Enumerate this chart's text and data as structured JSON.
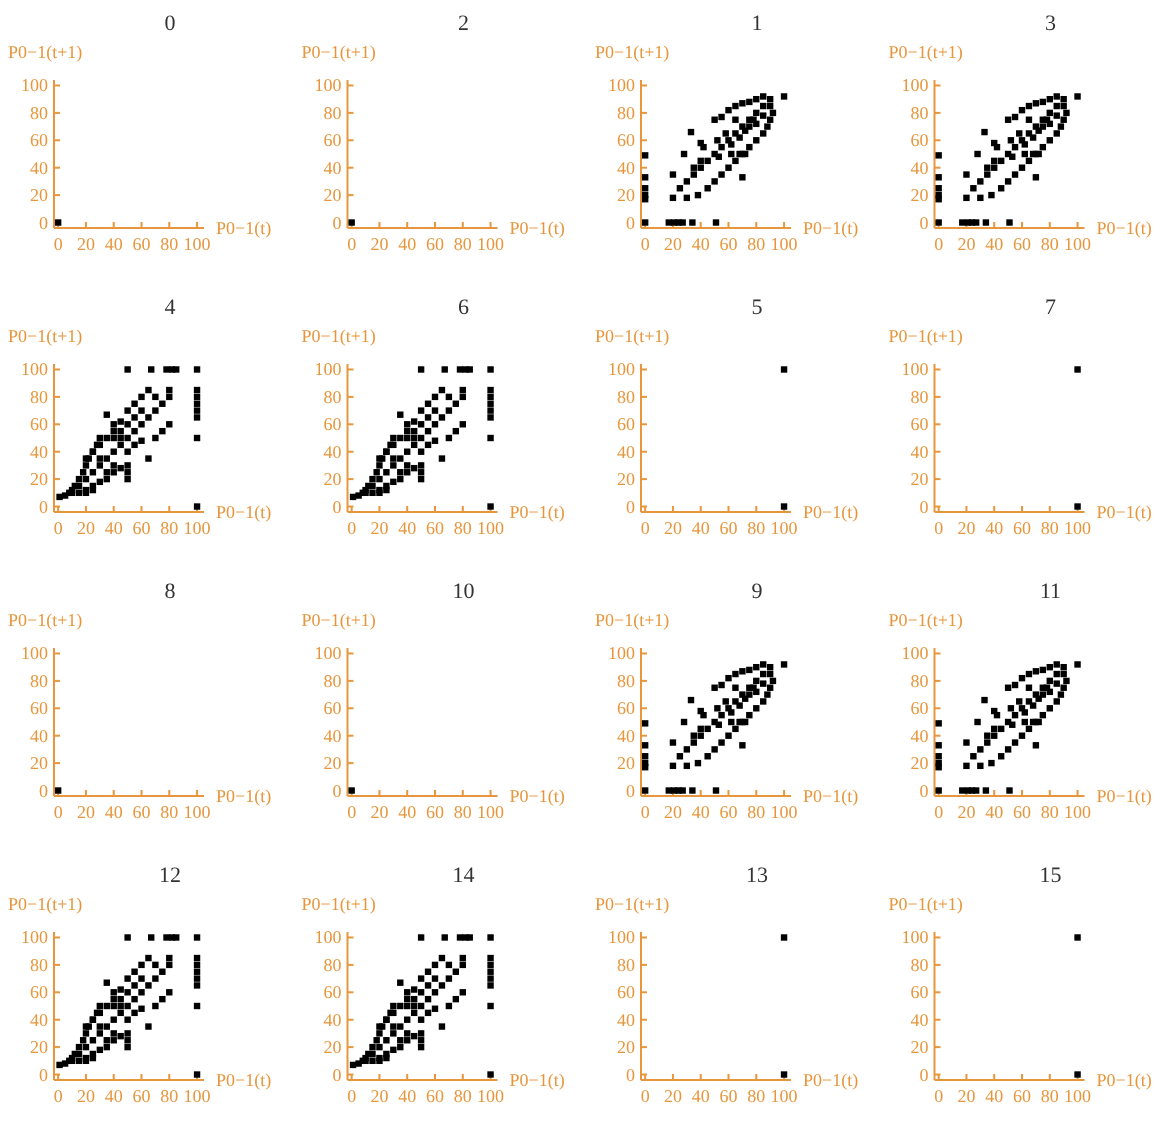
{
  "chart_data": [
    {
      "type": "scatter",
      "title": "0",
      "xlabel": "P0−1(t)",
      "ylabel": "P0−1(t+1)",
      "xlim": [
        -3,
        105
      ],
      "ylim": [
        -4,
        104
      ],
      "xticks": [
        0,
        20,
        40,
        60,
        80,
        100
      ],
      "yticks": [
        0,
        20,
        40,
        60,
        80,
        100
      ],
      "grid": false,
      "marker": "square",
      "series": [
        {
          "color": "#000000",
          "x": [
            0
          ],
          "values": [
            0
          ]
        }
      ]
    },
    {
      "type": "scatter",
      "title": "2",
      "xlabel": "P0−1(t)",
      "ylabel": "P0−1(t+1)",
      "xlim": [
        -3,
        105
      ],
      "ylim": [
        -4,
        104
      ],
      "xticks": [
        0,
        20,
        40,
        60,
        80,
        100
      ],
      "yticks": [
        0,
        20,
        40,
        60,
        80,
        100
      ],
      "grid": false,
      "marker": "square",
      "series": [
        {
          "color": "#000000",
          "x": [
            0
          ],
          "values": [
            0
          ]
        }
      ]
    },
    {
      "type": "scatter",
      "title": "1",
      "xlabel": "P0−1(t)",
      "ylabel": "P0−1(t+1)",
      "xlim": [
        -3,
        105
      ],
      "ylim": [
        -4,
        104
      ],
      "xticks": [
        0,
        20,
        40,
        60,
        80,
        100
      ],
      "yticks": [
        0,
        20,
        40,
        60,
        80,
        100
      ],
      "grid": false,
      "marker": "square",
      "series": [
        {
          "color": "#000000",
          "x": [
            0,
            0,
            0,
            0,
            0,
            0,
            17,
            21,
            24,
            27,
            34,
            51,
            20,
            25,
            30,
            35,
            40,
            45,
            50,
            55,
            60,
            65,
            70,
            75,
            80,
            85,
            90,
            100,
            20,
            28,
            33,
            40,
            42,
            50,
            55,
            60,
            65,
            70,
            75,
            80,
            85,
            30,
            38,
            45,
            50,
            55,
            60,
            65,
            70,
            75,
            80,
            85,
            88,
            90,
            92,
            35,
            40,
            53,
            62,
            68,
            70,
            72,
            52,
            58,
            65,
            75,
            80,
            85,
            90,
            62,
            68,
            72,
            78
          ],
          "values": [
            49,
            33,
            25,
            20,
            17,
            0,
            0,
            0,
            0,
            0,
            0,
            0,
            18,
            25,
            30,
            35,
            40,
            45,
            50,
            55,
            60,
            65,
            70,
            75,
            80,
            85,
            90,
            92,
            35,
            50,
            66,
            58,
            55,
            75,
            77,
            82,
            85,
            87,
            88,
            90,
            92,
            18,
            20,
            25,
            30,
            35,
            40,
            45,
            50,
            55,
            60,
            65,
            70,
            75,
            80,
            40,
            45,
            48,
            50,
            50,
            33,
            50,
            60,
            65,
            75,
            70,
            72,
            78,
            85,
            57,
            62,
            67,
            75
          ]
        }
      ]
    },
    {
      "type": "scatter",
      "title": "3",
      "xlabel": "P0−1(t)",
      "ylabel": "P0−1(t+1)",
      "xlim": [
        -3,
        105
      ],
      "ylim": [
        -4,
        104
      ],
      "xticks": [
        0,
        20,
        40,
        60,
        80,
        100
      ],
      "yticks": [
        0,
        20,
        40,
        60,
        80,
        100
      ],
      "grid": false,
      "marker": "square",
      "series": [
        {
          "color": "#000000",
          "x": [
            0,
            0,
            0,
            0,
            0,
            0,
            17,
            21,
            24,
            27,
            34,
            51,
            20,
            25,
            30,
            35,
            40,
            45,
            50,
            55,
            60,
            65,
            70,
            75,
            80,
            85,
            90,
            100,
            20,
            28,
            33,
            40,
            42,
            50,
            55,
            60,
            65,
            70,
            75,
            80,
            85,
            30,
            38,
            45,
            50,
            55,
            60,
            65,
            70,
            75,
            80,
            85,
            88,
            90,
            92,
            35,
            40,
            53,
            62,
            68,
            70,
            72,
            52,
            58,
            65,
            75,
            80,
            85,
            90,
            62,
            68,
            72,
            78
          ],
          "values": [
            49,
            33,
            25,
            20,
            17,
            0,
            0,
            0,
            0,
            0,
            0,
            0,
            18,
            25,
            30,
            35,
            40,
            45,
            50,
            55,
            60,
            65,
            70,
            75,
            80,
            85,
            90,
            92,
            35,
            50,
            66,
            58,
            55,
            75,
            77,
            82,
            85,
            87,
            88,
            90,
            92,
            18,
            20,
            25,
            30,
            35,
            40,
            45,
            50,
            55,
            60,
            65,
            70,
            75,
            80,
            40,
            45,
            48,
            50,
            50,
            33,
            50,
            60,
            65,
            75,
            70,
            72,
            78,
            85,
            57,
            62,
            67,
            75
          ]
        }
      ]
    },
    {
      "type": "scatter",
      "title": "4",
      "xlabel": "P0−1(t)",
      "ylabel": "P0−1(t+1)",
      "xlim": [
        -3,
        105
      ],
      "ylim": [
        -4,
        104
      ],
      "xticks": [
        0,
        20,
        40,
        60,
        80,
        100
      ],
      "yticks": [
        0,
        20,
        40,
        60,
        80,
        100
      ],
      "grid": false,
      "marker": "square",
      "series": [
        {
          "color": "#000000",
          "x": [
            1,
            50,
            67,
            78,
            82,
            85,
            100,
            100,
            100,
            100,
            100,
            100,
            100,
            100,
            5,
            8,
            10,
            12,
            15,
            18,
            20,
            22,
            25,
            28,
            30,
            10,
            15,
            20,
            25,
            30,
            35,
            40,
            45,
            50,
            55,
            60,
            65,
            70,
            75,
            80,
            15,
            20,
            25,
            30,
            35,
            40,
            45,
            50,
            20,
            25,
            20,
            25,
            30,
            35,
            40,
            45,
            50,
            55,
            60,
            65,
            35,
            40,
            45,
            50,
            55,
            60,
            65,
            70,
            75,
            80,
            50,
            55,
            60,
            70,
            80,
            40,
            45,
            35,
            40,
            30,
            50,
            50
          ],
          "values": [
            7,
            100,
            100,
            100,
            100,
            100,
            100,
            85,
            80,
            75,
            70,
            65,
            50,
            0,
            8,
            10,
            12,
            15,
            20,
            25,
            30,
            35,
            40,
            45,
            50,
            10,
            15,
            20,
            25,
            30,
            35,
            40,
            45,
            50,
            55,
            60,
            65,
            70,
            75,
            80,
            10,
            12,
            15,
            18,
            20,
            25,
            28,
            30,
            10,
            12,
            35,
            40,
            45,
            50,
            55,
            62,
            70,
            75,
            80,
            85,
            67,
            60,
            50,
            40,
            45,
            48,
            35,
            50,
            55,
            60,
            60,
            65,
            70,
            80,
            85,
            50,
            55,
            25,
            30,
            35,
            25,
            20
          ]
        }
      ]
    },
    {
      "type": "scatter",
      "title": "6",
      "xlabel": "P0−1(t)",
      "ylabel": "P0−1(t+1)",
      "xlim": [
        -3,
        105
      ],
      "ylim": [
        -4,
        104
      ],
      "xticks": [
        0,
        20,
        40,
        60,
        80,
        100
      ],
      "yticks": [
        0,
        20,
        40,
        60,
        80,
        100
      ],
      "grid": false,
      "marker": "square",
      "series": [
        {
          "color": "#000000",
          "x": [
            1,
            50,
            67,
            78,
            82,
            85,
            100,
            100,
            100,
            100,
            100,
            100,
            100,
            100,
            5,
            8,
            10,
            12,
            15,
            18,
            20,
            22,
            25,
            28,
            30,
            10,
            15,
            20,
            25,
            30,
            35,
            40,
            45,
            50,
            55,
            60,
            65,
            70,
            75,
            80,
            15,
            20,
            25,
            30,
            35,
            40,
            45,
            50,
            20,
            25,
            20,
            25,
            30,
            35,
            40,
            45,
            50,
            55,
            60,
            65,
            35,
            40,
            45,
            50,
            55,
            60,
            65,
            70,
            75,
            80,
            50,
            55,
            60,
            70,
            80,
            40,
            45,
            35,
            40,
            30,
            50,
            50
          ],
          "values": [
            7,
            100,
            100,
            100,
            100,
            100,
            100,
            85,
            80,
            75,
            70,
            65,
            50,
            0,
            8,
            10,
            12,
            15,
            20,
            25,
            30,
            35,
            40,
            45,
            50,
            10,
            15,
            20,
            25,
            30,
            35,
            40,
            45,
            50,
            55,
            60,
            65,
            70,
            75,
            80,
            10,
            12,
            15,
            18,
            20,
            25,
            28,
            30,
            10,
            12,
            35,
            40,
            45,
            50,
            55,
            62,
            70,
            75,
            80,
            85,
            67,
            60,
            50,
            40,
            45,
            48,
            35,
            50,
            55,
            60,
            60,
            65,
            70,
            80,
            85,
            50,
            55,
            25,
            30,
            35,
            25,
            20
          ]
        }
      ]
    },
    {
      "type": "scatter",
      "title": "5",
      "xlabel": "P0−1(t)",
      "ylabel": "P0−1(t+1)",
      "xlim": [
        -3,
        105
      ],
      "ylim": [
        -4,
        104
      ],
      "xticks": [
        0,
        20,
        40,
        60,
        80,
        100
      ],
      "yticks": [
        0,
        20,
        40,
        60,
        80,
        100
      ],
      "grid": false,
      "marker": "square",
      "series": [
        {
          "color": "#000000",
          "x": [
            100,
            100
          ],
          "values": [
            100,
            0
          ]
        }
      ]
    },
    {
      "type": "scatter",
      "title": "7",
      "xlabel": "P0−1(t)",
      "ylabel": "P0−1(t+1)",
      "xlim": [
        -3,
        105
      ],
      "ylim": [
        -4,
        104
      ],
      "xticks": [
        0,
        20,
        40,
        60,
        80,
        100
      ],
      "yticks": [
        0,
        20,
        40,
        60,
        80,
        100
      ],
      "grid": false,
      "marker": "square",
      "series": [
        {
          "color": "#000000",
          "x": [
            100,
            100
          ],
          "values": [
            100,
            0
          ]
        }
      ]
    },
    {
      "type": "scatter",
      "title": "8",
      "xlabel": "P0−1(t)",
      "ylabel": "P0−1(t+1)",
      "xlim": [
        -3,
        105
      ],
      "ylim": [
        -4,
        104
      ],
      "xticks": [
        0,
        20,
        40,
        60,
        80,
        100
      ],
      "yticks": [
        0,
        20,
        40,
        60,
        80,
        100
      ],
      "grid": false,
      "marker": "square",
      "series": [
        {
          "color": "#000000",
          "x": [
            0
          ],
          "values": [
            0
          ]
        }
      ]
    },
    {
      "type": "scatter",
      "title": "10",
      "xlabel": "P0−1(t)",
      "ylabel": "P0−1(t+1)",
      "xlim": [
        -3,
        105
      ],
      "ylim": [
        -4,
        104
      ],
      "xticks": [
        0,
        20,
        40,
        60,
        80,
        100
      ],
      "yticks": [
        0,
        20,
        40,
        60,
        80,
        100
      ],
      "grid": false,
      "marker": "square",
      "series": [
        {
          "color": "#000000",
          "x": [
            0
          ],
          "values": [
            0
          ]
        }
      ]
    },
    {
      "type": "scatter",
      "title": "9",
      "xlabel": "P0−1(t)",
      "ylabel": "P0−1(t+1)",
      "xlim": [
        -3,
        105
      ],
      "ylim": [
        -4,
        104
      ],
      "xticks": [
        0,
        20,
        40,
        60,
        80,
        100
      ],
      "yticks": [
        0,
        20,
        40,
        60,
        80,
        100
      ],
      "grid": false,
      "marker": "square",
      "series": [
        {
          "color": "#000000",
          "x": [
            0,
            0,
            0,
            0,
            0,
            0,
            17,
            21,
            24,
            27,
            34,
            51,
            20,
            25,
            30,
            35,
            40,
            45,
            50,
            55,
            60,
            65,
            70,
            75,
            80,
            85,
            90,
            100,
            20,
            28,
            33,
            40,
            42,
            50,
            55,
            60,
            65,
            70,
            75,
            80,
            85,
            30,
            38,
            45,
            50,
            55,
            60,
            65,
            70,
            75,
            80,
            85,
            88,
            90,
            92,
            35,
            40,
            53,
            62,
            68,
            70,
            72,
            52,
            58,
            65,
            75,
            80,
            85,
            90,
            62,
            68,
            72,
            78
          ],
          "values": [
            49,
            33,
            25,
            20,
            17,
            0,
            0,
            0,
            0,
            0,
            0,
            0,
            18,
            25,
            30,
            35,
            40,
            45,
            50,
            55,
            60,
            65,
            70,
            75,
            80,
            85,
            90,
            92,
            35,
            50,
            66,
            58,
            55,
            75,
            77,
            82,
            85,
            87,
            88,
            90,
            92,
            18,
            20,
            25,
            30,
            35,
            40,
            45,
            50,
            55,
            60,
            65,
            70,
            75,
            80,
            40,
            45,
            48,
            50,
            50,
            33,
            50,
            60,
            65,
            75,
            70,
            72,
            78,
            85,
            57,
            62,
            67,
            75
          ]
        }
      ]
    },
    {
      "type": "scatter",
      "title": "11",
      "xlabel": "P0−1(t)",
      "ylabel": "P0−1(t+1)",
      "xlim": [
        -3,
        105
      ],
      "ylim": [
        -4,
        104
      ],
      "xticks": [
        0,
        20,
        40,
        60,
        80,
        100
      ],
      "yticks": [
        0,
        20,
        40,
        60,
        80,
        100
      ],
      "grid": false,
      "marker": "square",
      "series": [
        {
          "color": "#000000",
          "x": [
            0,
            0,
            0,
            0,
            0,
            0,
            17,
            21,
            24,
            27,
            34,
            51,
            20,
            25,
            30,
            35,
            40,
            45,
            50,
            55,
            60,
            65,
            70,
            75,
            80,
            85,
            90,
            100,
            20,
            28,
            33,
            40,
            42,
            50,
            55,
            60,
            65,
            70,
            75,
            80,
            85,
            30,
            38,
            45,
            50,
            55,
            60,
            65,
            70,
            75,
            80,
            85,
            88,
            90,
            92,
            35,
            40,
            53,
            62,
            68,
            70,
            72,
            52,
            58,
            65,
            75,
            80,
            85,
            90,
            62,
            68,
            72,
            78
          ],
          "values": [
            49,
            33,
            25,
            20,
            17,
            0,
            0,
            0,
            0,
            0,
            0,
            0,
            18,
            25,
            30,
            35,
            40,
            45,
            50,
            55,
            60,
            65,
            70,
            75,
            80,
            85,
            90,
            92,
            35,
            50,
            66,
            58,
            55,
            75,
            77,
            82,
            85,
            87,
            88,
            90,
            92,
            18,
            20,
            25,
            30,
            35,
            40,
            45,
            50,
            55,
            60,
            65,
            70,
            75,
            80,
            40,
            45,
            48,
            50,
            50,
            33,
            50,
            60,
            65,
            75,
            70,
            72,
            78,
            85,
            57,
            62,
            67,
            75
          ]
        }
      ]
    },
    {
      "type": "scatter",
      "title": "12",
      "xlabel": "P0−1(t)",
      "ylabel": "P0−1(t+1)",
      "xlim": [
        -3,
        105
      ],
      "ylim": [
        -4,
        104
      ],
      "xticks": [
        0,
        20,
        40,
        60,
        80,
        100
      ],
      "yticks": [
        0,
        20,
        40,
        60,
        80,
        100
      ],
      "grid": false,
      "marker": "square",
      "series": [
        {
          "color": "#000000",
          "x": [
            1,
            50,
            67,
            78,
            82,
            85,
            100,
            100,
            100,
            100,
            100,
            100,
            100,
            100,
            5,
            8,
            10,
            12,
            15,
            18,
            20,
            22,
            25,
            28,
            30,
            10,
            15,
            20,
            25,
            30,
            35,
            40,
            45,
            50,
            55,
            60,
            65,
            70,
            75,
            80,
            15,
            20,
            25,
            30,
            35,
            40,
            45,
            50,
            20,
            25,
            20,
            25,
            30,
            35,
            40,
            45,
            50,
            55,
            60,
            65,
            35,
            40,
            45,
            50,
            55,
            60,
            65,
            70,
            75,
            80,
            50,
            55,
            60,
            70,
            80,
            40,
            45,
            35,
            40,
            30,
            50,
            50
          ],
          "values": [
            7,
            100,
            100,
            100,
            100,
            100,
            100,
            85,
            80,
            75,
            70,
            65,
            50,
            0,
            8,
            10,
            12,
            15,
            20,
            25,
            30,
            35,
            40,
            45,
            50,
            10,
            15,
            20,
            25,
            30,
            35,
            40,
            45,
            50,
            55,
            60,
            65,
            70,
            75,
            80,
            10,
            12,
            15,
            18,
            20,
            25,
            28,
            30,
            10,
            12,
            35,
            40,
            45,
            50,
            55,
            62,
            70,
            75,
            80,
            85,
            67,
            60,
            50,
            40,
            45,
            48,
            35,
            50,
            55,
            60,
            60,
            65,
            70,
            80,
            85,
            50,
            55,
            25,
            30,
            35,
            25,
            20
          ]
        }
      ]
    },
    {
      "type": "scatter",
      "title": "14",
      "xlabel": "P0−1(t)",
      "ylabel": "P0−1(t+1)",
      "xlim": [
        -3,
        105
      ],
      "ylim": [
        -4,
        104
      ],
      "xticks": [
        0,
        20,
        40,
        60,
        80,
        100
      ],
      "yticks": [
        0,
        20,
        40,
        60,
        80,
        100
      ],
      "grid": false,
      "marker": "square",
      "series": [
        {
          "color": "#000000",
          "x": [
            1,
            50,
            67,
            78,
            82,
            85,
            100,
            100,
            100,
            100,
            100,
            100,
            100,
            100,
            5,
            8,
            10,
            12,
            15,
            18,
            20,
            22,
            25,
            28,
            30,
            10,
            15,
            20,
            25,
            30,
            35,
            40,
            45,
            50,
            55,
            60,
            65,
            70,
            75,
            80,
            15,
            20,
            25,
            30,
            35,
            40,
            45,
            50,
            20,
            25,
            20,
            25,
            30,
            35,
            40,
            45,
            50,
            55,
            60,
            65,
            35,
            40,
            45,
            50,
            55,
            60,
            65,
            70,
            75,
            80,
            50,
            55,
            60,
            70,
            80,
            40,
            45,
            35,
            40,
            30,
            50,
            50
          ],
          "values": [
            7,
            100,
            100,
            100,
            100,
            100,
            100,
            85,
            80,
            75,
            70,
            65,
            50,
            0,
            8,
            10,
            12,
            15,
            20,
            25,
            30,
            35,
            40,
            45,
            50,
            10,
            15,
            20,
            25,
            30,
            35,
            40,
            45,
            50,
            55,
            60,
            65,
            70,
            75,
            80,
            10,
            12,
            15,
            18,
            20,
            25,
            28,
            30,
            10,
            12,
            35,
            40,
            45,
            50,
            55,
            62,
            70,
            75,
            80,
            85,
            67,
            60,
            50,
            40,
            45,
            48,
            35,
            50,
            55,
            60,
            60,
            65,
            70,
            80,
            85,
            50,
            55,
            25,
            30,
            35,
            25,
            20
          ]
        }
      ]
    },
    {
      "type": "scatter",
      "title": "13",
      "xlabel": "P0−1(t)",
      "ylabel": "P0−1(t+1)",
      "xlim": [
        -3,
        105
      ],
      "ylim": [
        -4,
        104
      ],
      "xticks": [
        0,
        20,
        40,
        60,
        80,
        100
      ],
      "yticks": [
        0,
        20,
        40,
        60,
        80,
        100
      ],
      "grid": false,
      "marker": "square",
      "series": [
        {
          "color": "#000000",
          "x": [
            100,
            100
          ],
          "values": [
            100,
            0
          ]
        }
      ]
    },
    {
      "type": "scatter",
      "title": "15",
      "xlabel": "P0−1(t)",
      "ylabel": "P0−1(t+1)",
      "xlim": [
        -3,
        105
      ],
      "ylim": [
        -4,
        104
      ],
      "xticks": [
        0,
        20,
        40,
        60,
        80,
        100
      ],
      "yticks": [
        0,
        20,
        40,
        60,
        80,
        100
      ],
      "grid": false,
      "marker": "square",
      "series": [
        {
          "color": "#000000",
          "x": [
            100,
            100
          ],
          "values": [
            100,
            0
          ]
        }
      ]
    }
  ]
}
